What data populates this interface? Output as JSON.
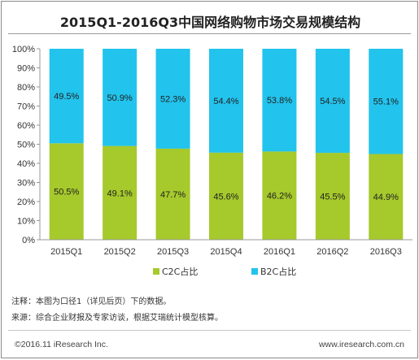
{
  "chart_data": {
    "type": "bar",
    "stacked": true,
    "title": "2015Q1-2016Q3中国网络购物市场交易规模结构",
    "categories": [
      "2015Q1",
      "2015Q2",
      "2015Q3",
      "2015Q4",
      "2016Q1",
      "2016Q2",
      "2016Q3"
    ],
    "series": [
      {
        "name": "C2C占比",
        "color": "#a6c92c",
        "values": [
          50.5,
          49.1,
          47.7,
          45.6,
          46.2,
          45.5,
          44.9
        ]
      },
      {
        "name": "B2C占比",
        "color": "#22c3ec",
        "values": [
          49.5,
          50.9,
          52.3,
          54.4,
          53.8,
          54.5,
          55.1
        ]
      }
    ],
    "data_labels": {
      "C2C占比": [
        "50.5%",
        "49.1%",
        "47.7%",
        "45.6%",
        "46.2%",
        "45.5%",
        "44.9%"
      ],
      "B2C占比": [
        "49.5%",
        "50.9%",
        "52.3%",
        "54.4%",
        "53.8%",
        "54.5%",
        "55.1%"
      ]
    },
    "yticks": [
      "0%",
      "10%",
      "20%",
      "30%",
      "40%",
      "50%",
      "60%",
      "70%",
      "80%",
      "90%",
      "100%"
    ],
    "ylim": [
      0,
      100
    ],
    "xlabel": "",
    "ylabel": "",
    "grid": false,
    "legend_position": "bottom"
  },
  "notes": {
    "note": "注释：本图为口径1（详见后页）下的数据。",
    "source": "来源：综合企业财报及专家访谈，根据艾瑞统计模型核算。"
  },
  "footer": {
    "copyright": "©2016.11 iResearch Inc.",
    "website": "www.iresearch.com.cn"
  }
}
